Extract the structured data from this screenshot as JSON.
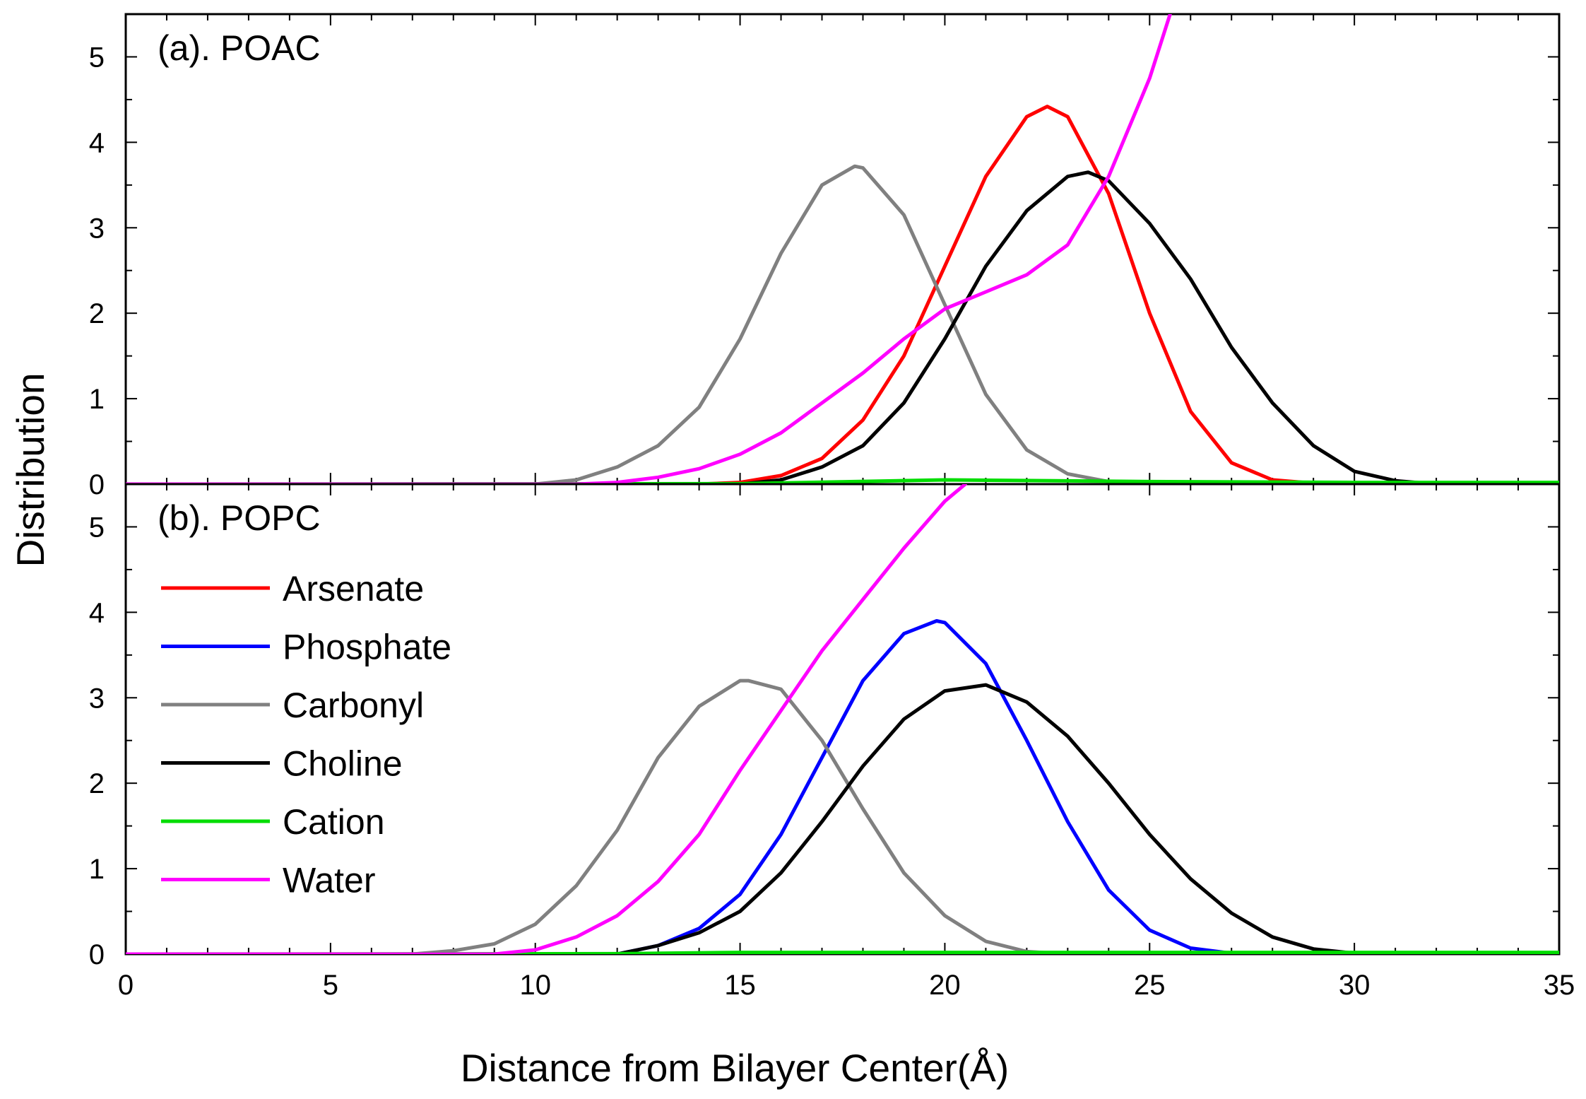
{
  "chart_data": [
    {
      "type": "line",
      "panel_label": "(a). POAC",
      "xlim": [
        0,
        35
      ],
      "ylim": [
        0,
        5.5
      ],
      "xticks": [
        0,
        5,
        10,
        15,
        20,
        25,
        30,
        35
      ],
      "yticks": [
        0,
        1,
        2,
        3,
        4,
        5
      ],
      "series": [
        {
          "name": "Arsenate",
          "color": "#ff0000",
          "x": [
            0,
            14,
            15,
            16,
            17,
            18,
            19,
            20,
            21,
            22,
            22.5,
            23,
            24,
            25,
            26,
            27,
            28,
            29,
            35
          ],
          "y": [
            0,
            0,
            0.02,
            0.1,
            0.3,
            0.75,
            1.5,
            2.55,
            3.6,
            4.3,
            4.42,
            4.3,
            3.4,
            2.0,
            0.85,
            0.25,
            0.05,
            0.01,
            0
          ]
        },
        {
          "name": "Carbonyl",
          "color": "#808080",
          "x": [
            0,
            10,
            11,
            12,
            13,
            14,
            15,
            16,
            17,
            17.8,
            18,
            19,
            20,
            21,
            22,
            23,
            24,
            25,
            35
          ],
          "y": [
            0,
            0,
            0.05,
            0.2,
            0.45,
            0.9,
            1.7,
            2.7,
            3.5,
            3.72,
            3.7,
            3.15,
            2.1,
            1.05,
            0.4,
            0.12,
            0.03,
            0,
            0
          ]
        },
        {
          "name": "Choline",
          "color": "#000000",
          "x": [
            0,
            15,
            16,
            17,
            18,
            19,
            20,
            21,
            22,
            23,
            23.5,
            24,
            25,
            26,
            27,
            28,
            29,
            30,
            31,
            32,
            35
          ],
          "y": [
            0,
            0,
            0.05,
            0.2,
            0.45,
            0.95,
            1.7,
            2.55,
            3.2,
            3.6,
            3.65,
            3.55,
            3.05,
            2.4,
            1.6,
            0.95,
            0.45,
            0.15,
            0.04,
            0,
            0
          ]
        },
        {
          "name": "Cation",
          "color": "#00dd00",
          "x": [
            0,
            15,
            20,
            25,
            30,
            35
          ],
          "y": [
            0,
            0.005,
            0.05,
            0.03,
            0.02,
            0.02
          ]
        },
        {
          "name": "Water",
          "color": "#ff00ff",
          "x": [
            0,
            11,
            12,
            13,
            14,
            15,
            16,
            17,
            18,
            19,
            20,
            21,
            22,
            23,
            24,
            25,
            25.5
          ],
          "y": [
            0,
            0,
            0.02,
            0.08,
            0.18,
            0.35,
            0.6,
            0.95,
            1.3,
            1.7,
            2.05,
            2.25,
            2.45,
            2.8,
            3.6,
            4.75,
            5.5
          ]
        }
      ]
    },
    {
      "type": "line",
      "panel_label": "(b). POPC",
      "xlim": [
        0,
        35
      ],
      "ylim": [
        0,
        5.5
      ],
      "xticks": [
        0,
        5,
        10,
        15,
        20,
        25,
        30,
        35
      ],
      "yticks": [
        0,
        1,
        2,
        3,
        4,
        5
      ],
      "series": [
        {
          "name": "Phosphate",
          "color": "#0000ff",
          "x": [
            0,
            12,
            13,
            14,
            15,
            16,
            17,
            18,
            19,
            19.8,
            20,
            21,
            22,
            23,
            24,
            25,
            26,
            27
          ],
          "y": [
            0,
            0,
            0.1,
            0.3,
            0.7,
            1.4,
            2.3,
            3.2,
            3.75,
            3.9,
            3.88,
            3.4,
            2.5,
            1.55,
            0.75,
            0.28,
            0.07,
            0.01
          ]
        },
        {
          "name": "Carbonyl",
          "color": "#808080",
          "x": [
            0,
            7,
            8,
            9,
            10,
            11,
            12,
            13,
            14,
            15,
            15.2,
            16,
            17,
            18,
            19,
            20,
            21,
            22,
            23,
            35
          ],
          "y": [
            0,
            0,
            0.04,
            0.12,
            0.35,
            0.8,
            1.45,
            2.3,
            2.9,
            3.2,
            3.2,
            3.1,
            2.5,
            1.7,
            0.95,
            0.45,
            0.15,
            0.03,
            0,
            0
          ]
        },
        {
          "name": "Choline",
          "color": "#000000",
          "x": [
            0,
            12,
            13,
            14,
            15,
            16,
            17,
            18,
            19,
            20,
            21,
            22,
            23,
            24,
            25,
            26,
            27,
            28,
            29,
            30,
            35
          ],
          "y": [
            0,
            0,
            0.1,
            0.25,
            0.5,
            0.95,
            1.55,
            2.2,
            2.75,
            3.08,
            3.15,
            2.95,
            2.55,
            2.0,
            1.4,
            0.88,
            0.48,
            0.2,
            0.06,
            0.01,
            0
          ]
        },
        {
          "name": "Cation",
          "color": "#00dd00",
          "x": [
            0,
            12,
            15,
            20,
            25,
            30,
            35
          ],
          "y": [
            0,
            0.005,
            0.02,
            0.02,
            0.02,
            0.02,
            0.02
          ]
        },
        {
          "name": "Water",
          "color": "#ff00ff",
          "x": [
            0,
            9,
            10,
            11,
            12,
            13,
            14,
            15,
            16,
            17,
            18,
            19,
            20,
            20.5
          ],
          "y": [
            0,
            0,
            0.05,
            0.2,
            0.45,
            0.85,
            1.4,
            2.15,
            2.85,
            3.55,
            4.15,
            4.75,
            5.3,
            5.5
          ]
        }
      ]
    }
  ],
  "shared": {
    "ylabel": "Distribution",
    "xlabel": "Distance from Bilayer Center(Å)",
    "legend": {
      "placement": "left",
      "entries": [
        {
          "name": "Arsenate",
          "color": "#ff0000"
        },
        {
          "name": "Phosphate",
          "color": "#0000ff"
        },
        {
          "name": "Carbonyl",
          "color": "#808080"
        },
        {
          "name": "Choline",
          "color": "#000000"
        },
        {
          "name": "Cation",
          "color": "#00dd00"
        },
        {
          "name": "Water",
          "color": "#ff00ff"
        }
      ]
    }
  }
}
